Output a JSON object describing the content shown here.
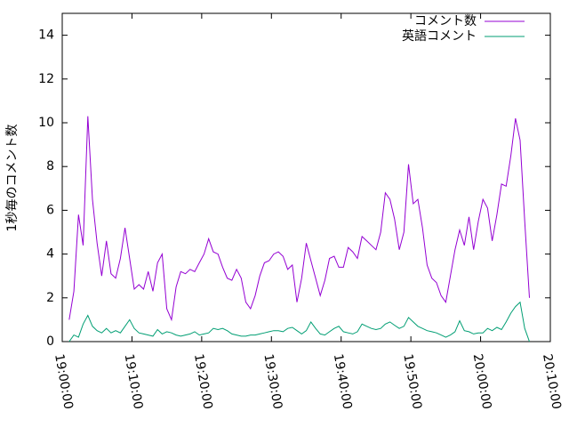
{
  "chart_data": {
    "type": "line",
    "y_label": "1秒毎のコメント数",
    "xlim": [
      "19:00:00",
      "20:10:00"
    ],
    "xticks": [
      "19:00:00",
      "19:10:00",
      "19:20:00",
      "19:30:00",
      "19:40:00",
      "19:50:00",
      "20:00:00",
      "20:10:00"
    ],
    "ylim": [
      0,
      15
    ],
    "yticks": [
      0,
      2,
      4,
      6,
      8,
      10,
      12,
      14
    ],
    "legend": "top-right",
    "x": [
      "19:01:00",
      "19:01:40",
      "19:02:20",
      "19:03:00",
      "19:03:40",
      "19:04:20",
      "19:05:00",
      "19:05:40",
      "19:06:20",
      "19:07:00",
      "19:07:40",
      "19:08:20",
      "19:09:00",
      "19:09:40",
      "19:10:20",
      "19:11:00",
      "19:11:40",
      "19:12:20",
      "19:13:00",
      "19:13:40",
      "19:14:20",
      "19:15:00",
      "19:15:40",
      "19:16:20",
      "19:17:00",
      "19:17:40",
      "19:18:20",
      "19:19:00",
      "19:19:40",
      "19:20:20",
      "19:21:00",
      "19:21:40",
      "19:22:20",
      "19:23:00",
      "19:23:40",
      "19:24:20",
      "19:25:00",
      "19:25:40",
      "19:26:20",
      "19:27:00",
      "19:27:40",
      "19:28:20",
      "19:29:00",
      "19:29:40",
      "19:30:20",
      "19:31:00",
      "19:31:40",
      "19:32:20",
      "19:33:00",
      "19:33:40",
      "19:34:20",
      "19:35:00",
      "19:35:40",
      "19:36:20",
      "19:37:00",
      "19:37:40",
      "19:38:20",
      "19:39:00",
      "19:39:40",
      "19:40:20",
      "19:41:00",
      "19:41:40",
      "19:42:20",
      "19:43:00",
      "19:43:40",
      "19:44:20",
      "19:45:00",
      "19:45:40",
      "19:46:20",
      "19:47:00",
      "19:47:40",
      "19:48:20",
      "19:49:00",
      "19:49:40",
      "19:50:20",
      "19:51:00",
      "19:51:40",
      "19:52:20",
      "19:53:00",
      "19:53:40",
      "19:54:20",
      "19:55:00",
      "19:55:40",
      "19:56:20",
      "19:57:00",
      "19:57:40",
      "19:58:20",
      "19:59:00",
      "19:59:40",
      "20:00:20",
      "20:01:00",
      "20:01:40",
      "20:02:20",
      "20:03:00",
      "20:03:40",
      "20:04:20",
      "20:05:00",
      "20:05:40",
      "20:06:20",
      "20:07:00"
    ],
    "series": [
      {
        "name": "コメント数",
        "color": "#9400d3",
        "values": [
          1.0,
          2.3,
          5.8,
          4.4,
          10.3,
          6.5,
          4.5,
          3.0,
          4.6,
          3.1,
          2.9,
          3.8,
          5.2,
          3.8,
          2.4,
          2.6,
          2.4,
          3.2,
          2.3,
          3.6,
          4.0,
          1.5,
          1.0,
          2.5,
          3.2,
          3.1,
          3.3,
          3.2,
          3.6,
          4.0,
          4.7,
          4.1,
          4.0,
          3.4,
          2.9,
          2.8,
          3.3,
          2.9,
          1.8,
          1.5,
          2.1,
          3.0,
          3.6,
          3.7,
          4.0,
          4.1,
          3.9,
          3.3,
          3.5,
          1.8,
          2.9,
          4.5,
          3.7,
          2.9,
          2.1,
          2.8,
          3.8,
          3.9,
          3.4,
          3.4,
          4.3,
          4.1,
          3.8,
          4.8,
          4.6,
          4.4,
          4.2,
          5.0,
          6.8,
          6.5,
          5.6,
          4.2,
          5.0,
          8.1,
          6.3,
          6.5,
          5.2,
          3.5,
          2.9,
          2.7,
          2.1,
          1.8,
          3.0,
          4.2,
          5.1,
          4.4,
          5.7,
          4.2,
          5.5,
          6.5,
          6.1,
          4.6,
          5.8,
          7.2,
          7.1,
          8.5,
          10.2,
          9.2,
          5.5,
          2.0
        ]
      },
      {
        "name": "英語コメント",
        "color": "#009e73",
        "values": [
          0.0,
          0.3,
          0.2,
          0.8,
          1.2,
          0.7,
          0.5,
          0.4,
          0.6,
          0.4,
          0.5,
          0.4,
          0.7,
          1.0,
          0.6,
          0.4,
          0.35,
          0.3,
          0.25,
          0.55,
          0.35,
          0.45,
          0.4,
          0.3,
          0.25,
          0.3,
          0.35,
          0.45,
          0.3,
          0.35,
          0.4,
          0.6,
          0.55,
          0.6,
          0.5,
          0.35,
          0.3,
          0.25,
          0.25,
          0.3,
          0.3,
          0.35,
          0.4,
          0.45,
          0.5,
          0.5,
          0.45,
          0.6,
          0.65,
          0.5,
          0.35,
          0.5,
          0.9,
          0.6,
          0.35,
          0.3,
          0.45,
          0.6,
          0.7,
          0.45,
          0.4,
          0.35,
          0.45,
          0.8,
          0.7,
          0.6,
          0.55,
          0.6,
          0.8,
          0.9,
          0.75,
          0.6,
          0.7,
          1.1,
          0.9,
          0.7,
          0.6,
          0.5,
          0.45,
          0.4,
          0.3,
          0.2,
          0.3,
          0.45,
          0.95,
          0.5,
          0.45,
          0.35,
          0.4,
          0.4,
          0.6,
          0.5,
          0.65,
          0.55,
          0.9,
          1.3,
          1.6,
          1.8,
          0.6,
          0.0
        ]
      }
    ]
  }
}
